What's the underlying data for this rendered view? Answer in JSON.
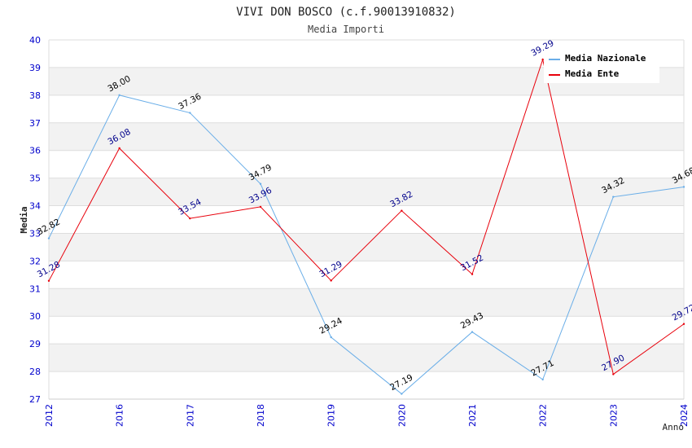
{
  "chart_data": {
    "type": "line",
    "title": "VIVI DON BOSCO (c.f.90013910832)",
    "subtitle": "Media Importi",
    "xlabel": "Anno",
    "ylabel": "Media",
    "categories": [
      "2012",
      "2016",
      "2017",
      "2018",
      "2019",
      "2020",
      "2021",
      "2022",
      "2023",
      "2024"
    ],
    "ylim": [
      27,
      40
    ],
    "yticks": [
      "27",
      "28",
      "29",
      "30",
      "31",
      "32",
      "33",
      "34",
      "35",
      "36",
      "37",
      "38",
      "39",
      "40"
    ],
    "series": [
      {
        "name": "Media Nazionale",
        "color": "#6aaee8",
        "label_color": "#000000",
        "values": [
          32.82,
          38.0,
          37.36,
          34.79,
          29.24,
          27.19,
          29.43,
          27.71,
          34.32,
          34.68
        ],
        "labels": [
          "32.82",
          "38.00",
          "37.36",
          "34.79",
          "29.24",
          "27.19",
          "29.43",
          "27.71",
          "34.32",
          "34.68"
        ]
      },
      {
        "name": "Media Ente",
        "color": "#e8000b",
        "label_color": "#00008b",
        "values": [
          31.28,
          36.08,
          33.54,
          33.96,
          31.29,
          33.82,
          31.52,
          39.29,
          27.9,
          29.72
        ],
        "labels": [
          "31.28",
          "36.08",
          "33.54",
          "33.96",
          "31.29",
          "33.82",
          "31.52",
          "39.29",
          "27.90",
          "29.72"
        ]
      }
    ],
    "grid": true,
    "legend": "top-right"
  }
}
